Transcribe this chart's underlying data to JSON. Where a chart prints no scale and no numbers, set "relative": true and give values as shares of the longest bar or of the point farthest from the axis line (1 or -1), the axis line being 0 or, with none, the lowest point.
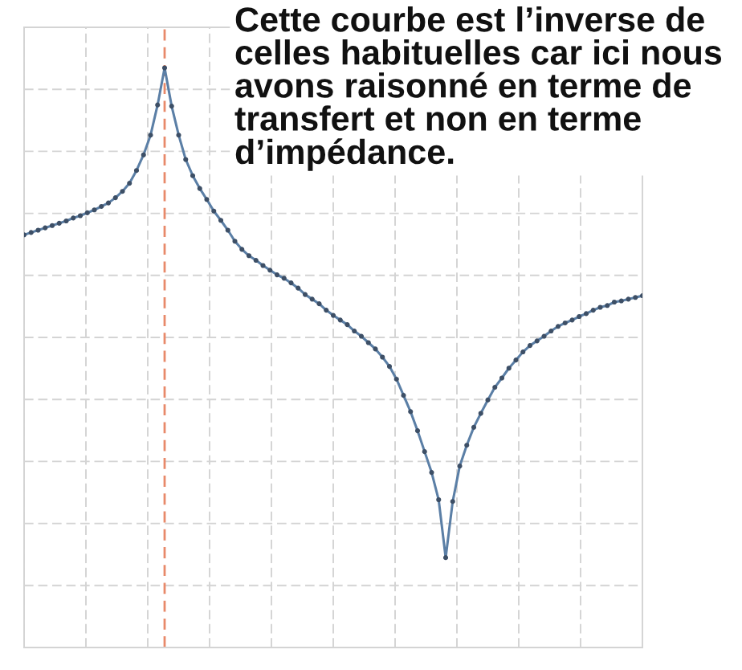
{
  "chart_data": {
    "type": "line",
    "relative": true,
    "categories": [
      null,
      null,
      null,
      null,
      null,
      null,
      null,
      null,
      null,
      null,
      null,
      null,
      null,
      null,
      null,
      null,
      null,
      null,
      null,
      null,
      null,
      null,
      null,
      null,
      null,
      null,
      null,
      null,
      null,
      null,
      null,
      null,
      null,
      null,
      null,
      null,
      null,
      null,
      null,
      null,
      null,
      null,
      null,
      null,
      null,
      null,
      null,
      null,
      null,
      null,
      null,
      null,
      null,
      null,
      null,
      null,
      null,
      null,
      null,
      null,
      null,
      null,
      null,
      null,
      null,
      null,
      null,
      null,
      null,
      null,
      null,
      null,
      null,
      null,
      null,
      null,
      null,
      null,
      null,
      null,
      null,
      null,
      null,
      null,
      null,
      null,
      null,
      null,
      null
    ],
    "series": [
      {
        "color": "#5b7fa6",
        "values": [
          0.712,
          0.716,
          0.72,
          0.724,
          0.728,
          0.732,
          0.736,
          0.741,
          0.745,
          0.75,
          0.755,
          0.761,
          0.767,
          0.776,
          0.787,
          0.801,
          0.823,
          0.85,
          0.884,
          0.936,
          1,
          0.934,
          0.884,
          0.842,
          0.814,
          0.792,
          0.773,
          0.753,
          0.737,
          0.72,
          0.701,
          0.687,
          0.676,
          0.668,
          0.659,
          0.651,
          0.643,
          0.637,
          0.629,
          0.62,
          0.609,
          0.601,
          0.593,
          0.582,
          0.573,
          0.565,
          0.557,
          0.546,
          0.537,
          0.526,
          0.515,
          0.501,
          0.485,
          0.463,
          0.435,
          0.407,
          0.374,
          0.338,
          0.302,
          0.255,
          0.155,
          0.252,
          0.313,
          0.349,
          0.38,
          0.404,
          0.427,
          0.449,
          0.465,
          0.482,
          0.496,
          0.51,
          0.521,
          0.529,
          0.537,
          0.546,
          0.554,
          0.56,
          0.565,
          0.571,
          0.576,
          0.582,
          0.587,
          0.59,
          0.596,
          0.598,
          0.601,
          0.604,
          0.607
        ]
      }
    ],
    "marker": "circle",
    "line_style": "solid",
    "grid": true,
    "annotations": [
      "Cette courbe est l’inverse de\ncelles habituelles car ici nous\navons raisonné en terme de\ntransfert et non en terme\nd’impédance."
    ]
  }
}
